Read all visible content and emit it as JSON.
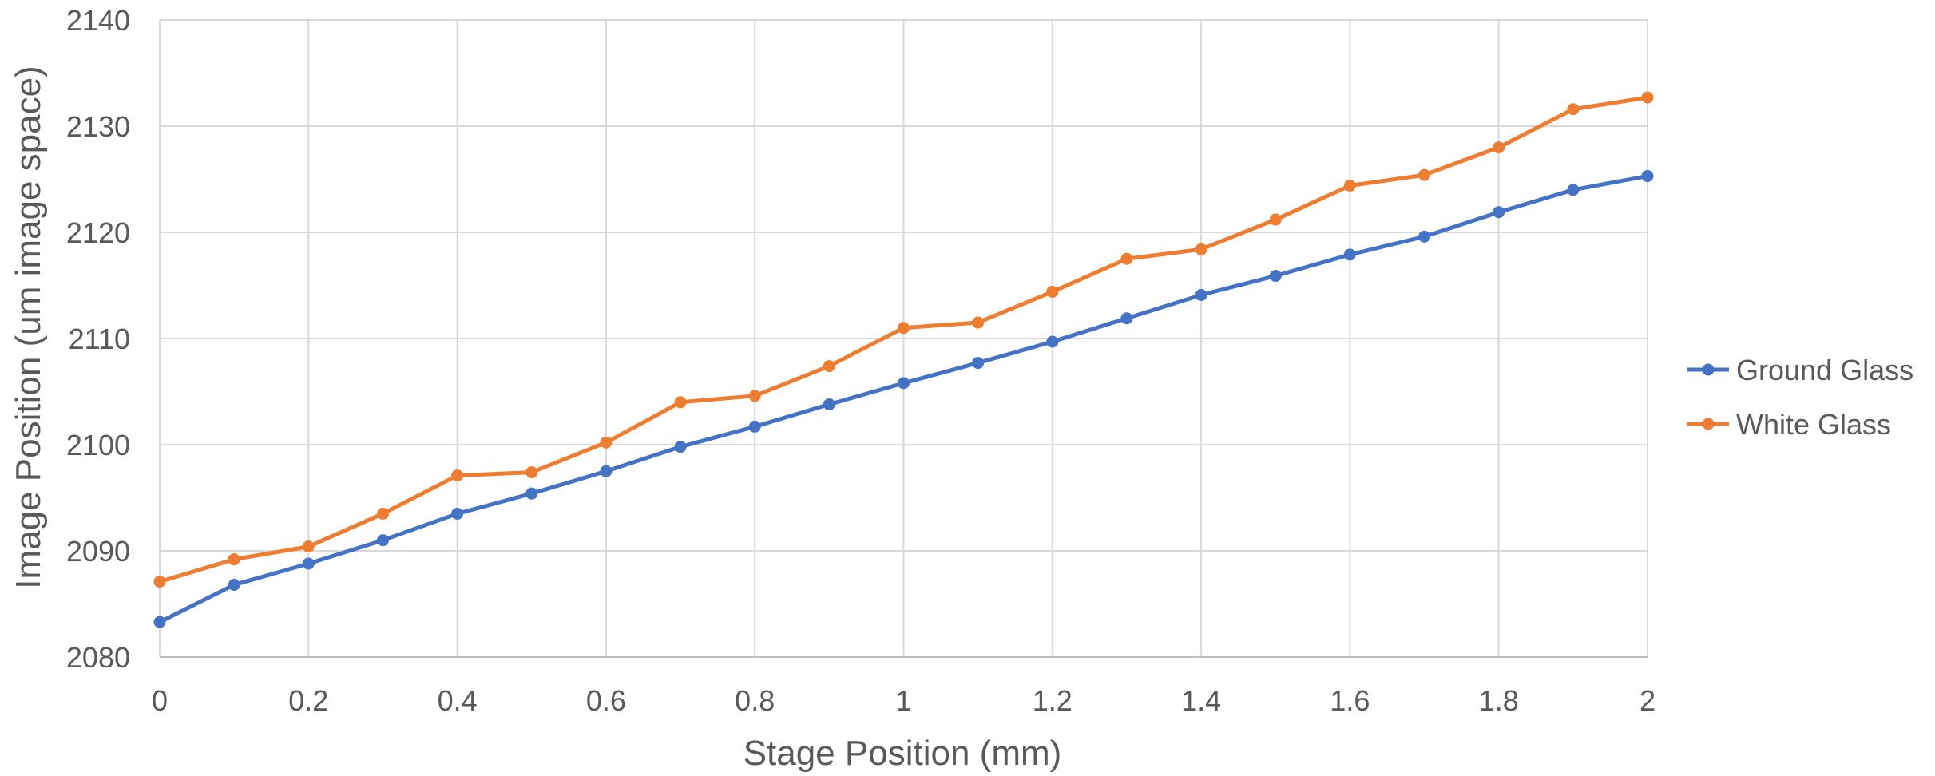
{
  "chart_data": {
    "type": "line",
    "title": "",
    "xlabel": "Stage Position (mm)",
    "ylabel": "Image Position (um image space)",
    "xlim": [
      0,
      2
    ],
    "ylim": [
      2080,
      2140
    ],
    "x_ticks": [
      0,
      0.2,
      0.4,
      0.6,
      0.8,
      1,
      1.2,
      1.4,
      1.6,
      1.8,
      2
    ],
    "y_ticks": [
      2080,
      2090,
      2100,
      2110,
      2120,
      2130,
      2140
    ],
    "grid": true,
    "legend_position": "right",
    "x": [
      0,
      0.1,
      0.2,
      0.3,
      0.4,
      0.5,
      0.6,
      0.7,
      0.8,
      0.9,
      1.0,
      1.1,
      1.2,
      1.3,
      1.4,
      1.5,
      1.6,
      1.7,
      1.8,
      1.9,
      2.0
    ],
    "series": [
      {
        "name": "Ground Glass",
        "color": "#4472C4",
        "values": [
          2083.3,
          2086.8,
          2088.8,
          2091.0,
          2093.5,
          2095.4,
          2097.5,
          2099.8,
          2101.7,
          2103.8,
          2105.8,
          2107.7,
          2109.7,
          2111.9,
          2114.1,
          2115.9,
          2117.9,
          2119.6,
          2121.9,
          2124.0,
          2125.3
        ]
      },
      {
        "name": "White Glass",
        "color": "#ED7D31",
        "values": [
          2087.1,
          2089.2,
          2090.4,
          2093.5,
          2097.1,
          2097.4,
          2100.2,
          2104.0,
          2104.6,
          2107.4,
          2111.0,
          2111.5,
          2114.4,
          2117.5,
          2118.4,
          2121.2,
          2124.4,
          2125.4,
          2128.0,
          2131.6,
          2132.7
        ]
      }
    ]
  }
}
